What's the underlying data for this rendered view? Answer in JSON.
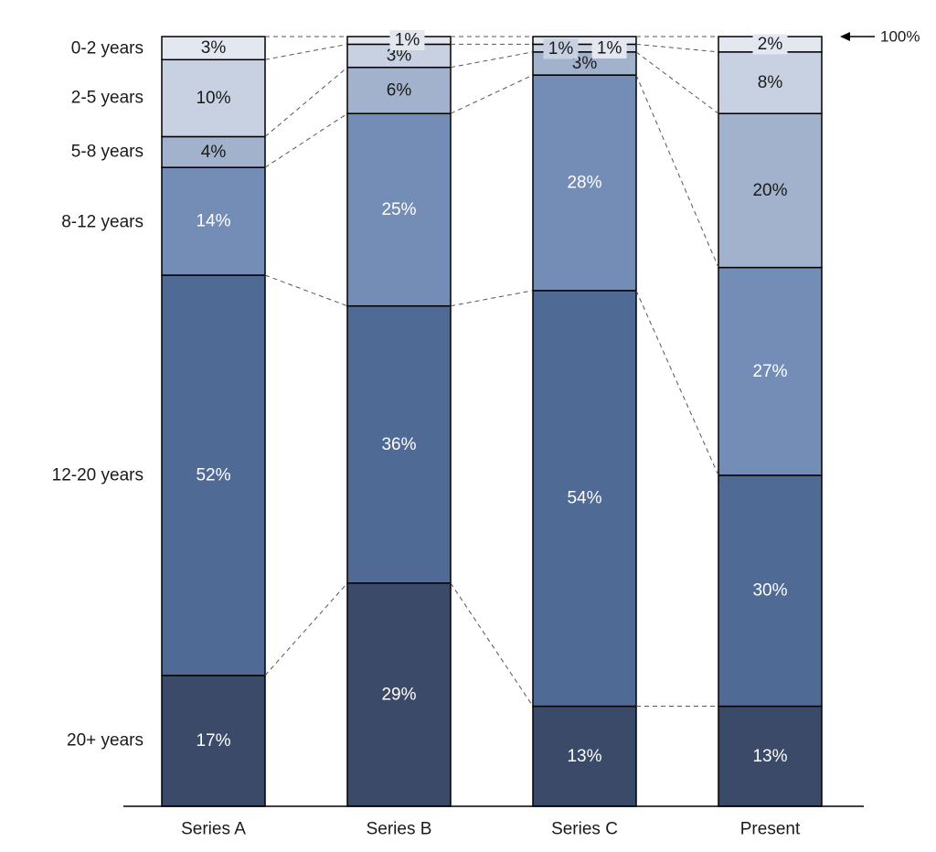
{
  "chart_data": {
    "type": "bar",
    "stacked": true,
    "title": "",
    "xlabel": "",
    "ylabel": "",
    "ylim": [
      0,
      100
    ],
    "grid": false,
    "categories": [
      "Series A",
      "Series B",
      "Series C",
      "Present"
    ],
    "series": [
      {
        "name": "20+ years",
        "values": [
          17,
          29,
          13,
          13
        ],
        "labels": [
          "17%",
          "29%",
          "13%",
          "13%"
        ],
        "color": "#3b4a68",
        "text_color": "#ffffff"
      },
      {
        "name": "12-20 years",
        "values": [
          52,
          36,
          54,
          30
        ],
        "labels": [
          "52%",
          "36%",
          "54%",
          "30%"
        ],
        "color": "#506a96",
        "text_color": "#ffffff"
      },
      {
        "name": "8-12 years",
        "values": [
          14,
          25,
          28,
          27
        ],
        "labels": [
          "14%",
          "25%",
          "28%",
          "27%"
        ],
        "color": "#738db6",
        "text_color": "#ffffff"
      },
      {
        "name": "5-8 years",
        "values": [
          4,
          6,
          3,
          20
        ],
        "labels": [
          "4%",
          "6%",
          "3%",
          "20%"
        ],
        "color": "#a2b2cc",
        "text_color": "#1a1a1a"
      },
      {
        "name": "2-5 years",
        "values": [
          10,
          3,
          1,
          8
        ],
        "labels": [
          "10%",
          "3%",
          "1%",
          "8%"
        ],
        "color": "#c8d1e2",
        "text_color": "#1a1a1a"
      },
      {
        "name": "0-2 years",
        "values": [
          3,
          1,
          1,
          2
        ],
        "labels": [
          "3%",
          "1%",
          "1%",
          "2%"
        ],
        "color": "#e2e7f0",
        "text_color": "#1a1a1a"
      }
    ],
    "annotations": [
      {
        "text": "100%",
        "target": "top of stacked bars"
      }
    ]
  }
}
